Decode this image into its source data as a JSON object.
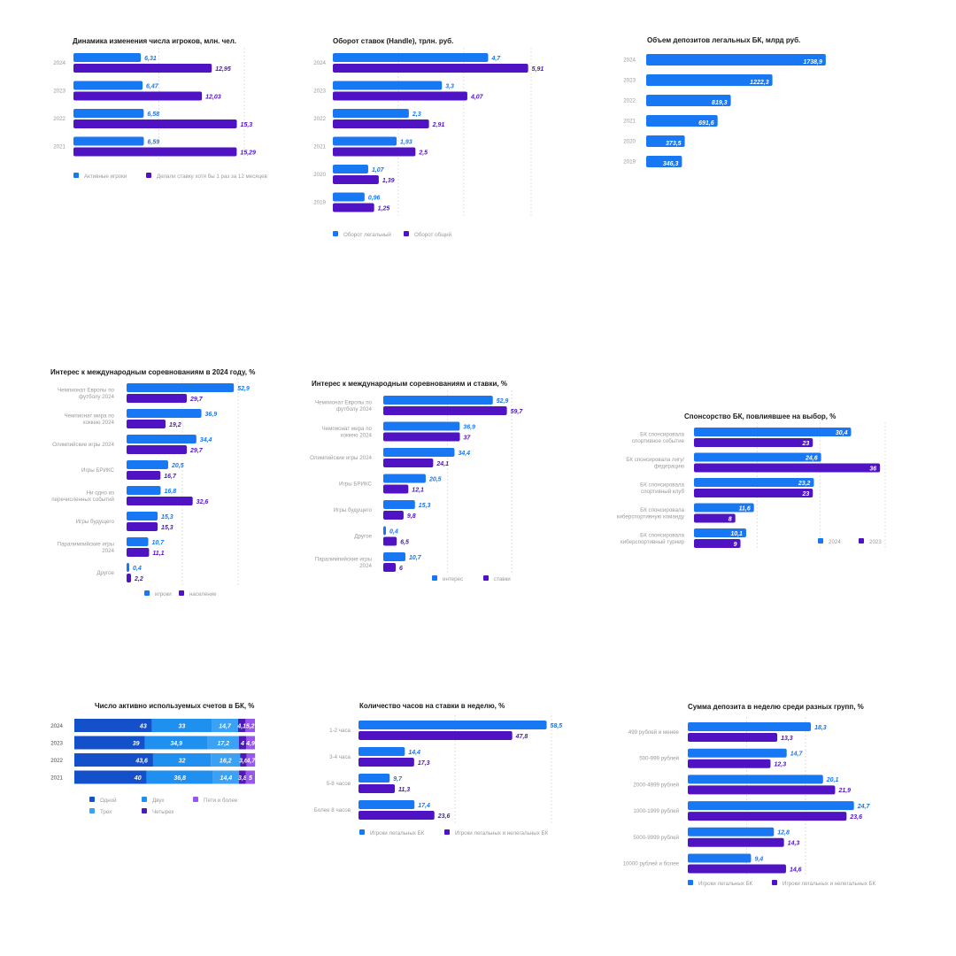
{
  "colors": {
    "blue": "#1877f2",
    "purple": "#4f13c4",
    "dark_blue": "#1350c9",
    "mid_blue": "#1f8ff0",
    "light_blue": "#3aa1f5",
    "dark_purple": "#4a1bb5",
    "violet": "#9956ee",
    "label_text": "#9a9a9a",
    "grid": "#d6d6d6"
  },
  "chart_data": [
    {
      "id": "players",
      "type": "bar",
      "title": "Динамика изменения числа игроков, млн. чел.",
      "categories": [
        "2024",
        "2023",
        "2022",
        "2021"
      ],
      "series": [
        {
          "name": "Активные игроки",
          "color": "#1877f2",
          "values": [
            6.31,
            6.47,
            6.58,
            6.59
          ],
          "labels": [
            "6,31",
            "6,47",
            "6,58",
            "6,59"
          ]
        },
        {
          "name": "Делали ставку хотя бы 1 раз за 12 месяцев",
          "color": "#4f13c4",
          "values": [
            12.95,
            12.03,
            15.3,
            15.29
          ],
          "labels": [
            "12,95",
            "12,03",
            "15,3",
            "15,29"
          ]
        }
      ],
      "xlim": [
        0,
        16
      ]
    },
    {
      "id": "handle",
      "type": "bar",
      "title": "Оборот ставок (Handle), трлн. руб.",
      "categories": [
        "2024",
        "2023",
        "2022",
        "2021",
        "2020",
        "2019"
      ],
      "series": [
        {
          "name": "Оборот легальный",
          "color": "#1877f2",
          "values": [
            4.7,
            3.3,
            2.3,
            1.93,
            1.07,
            0.96
          ],
          "labels": [
            "4,7",
            "3,3",
            "2,3",
            "1,93",
            "1,07",
            "0,96"
          ]
        },
        {
          "name": "Оборот общий",
          "color": "#4f13c4",
          "values": [
            5.91,
            4.07,
            2.91,
            2.5,
            1.39,
            1.25
          ],
          "labels": [
            "5,91",
            "4,07",
            "2,91",
            "2,5",
            "1,39",
            "1,25"
          ]
        }
      ],
      "xlim": [
        0,
        6
      ]
    },
    {
      "id": "deposits",
      "type": "bar",
      "title": "Объем депозитов легальных БК, млрд руб.",
      "categories": [
        "2024",
        "2023",
        "2022",
        "2021",
        "2020",
        "2019"
      ],
      "series": [
        {
          "name": "",
          "color": "#1877f2",
          "values": [
            1738.9,
            1222.3,
            819.3,
            691.6,
            373.5,
            346.3
          ],
          "labels": [
            "1738,9",
            "1222,3",
            "819,3",
            "691,6",
            "373,5",
            "346,3"
          ]
        }
      ],
      "xlim": [
        0,
        1800
      ]
    },
    {
      "id": "interest2024",
      "type": "bar",
      "title": "Интерес к международным соревнованиям в 2024 году, %",
      "categories": [
        "Чемпионат Европы по футболу 2024",
        "Чемпионат мира по хоккею 2024",
        "Олимпийские игры 2024",
        "Игры БРИКС",
        "Ни одно из перечисленных событий",
        "Игры будущего",
        "Паралимпийские игры 2024",
        "Другое"
      ],
      "series": [
        {
          "name": "игроки",
          "color": "#1877f2",
          "values": [
            52.9,
            36.9,
            34.4,
            20.5,
            16.8,
            15.3,
            10.7,
            0.4
          ],
          "labels": [
            "52,9",
            "36,9",
            "34,4",
            "20,5",
            "16,8",
            "15,3",
            "10,7",
            "0,4"
          ]
        },
        {
          "name": "население",
          "color": "#4f13c4",
          "values": [
            29.7,
            19.2,
            29.7,
            16.7,
            32.6,
            15.3,
            11.1,
            2.2
          ],
          "labels": [
            "29,7",
            "19,2",
            "29,7",
            "16,7",
            "32,6",
            "15,3",
            "11,1",
            "2,2"
          ]
        }
      ],
      "xlim": [
        0,
        55
      ]
    },
    {
      "id": "interest_bets",
      "type": "bar",
      "title": "Интерес к международным соревнованиям и ставки, %",
      "categories": [
        "Чемпионат Европы по футболу 2024",
        "Чемпионат мира по хоккею 2024",
        "Олимпийские игры 2024",
        "Игры БРИКС",
        "Игры будущего",
        "Другое",
        "Паралимпийские игры 2024"
      ],
      "series": [
        {
          "name": "интерес",
          "color": "#1877f2",
          "values": [
            52.9,
            36.9,
            34.4,
            20.5,
            15.3,
            0.4,
            10.7
          ],
          "labels": [
            "52,9",
            "36,9",
            "34,4",
            "20,5",
            "15,3",
            "0,4",
            "10,7"
          ]
        },
        {
          "name": "ставки",
          "color": "#4f13c4",
          "values": [
            59.7,
            37,
            24.1,
            12.1,
            9.8,
            6.5,
            6
          ],
          "labels": [
            "59,7",
            "37",
            "24,1",
            "12,1",
            "9,8",
            "6,5",
            "6"
          ]
        }
      ],
      "xlim": [
        0,
        62
      ]
    },
    {
      "id": "sponsorship",
      "type": "bar",
      "title": "Спонсорство БК, повлиявшее на выбор, %",
      "categories": [
        "БК спонсировала спортивное событие",
        "БК спонсировала лигу/ федерацию",
        "БК спонсировала спортивный клуб",
        "БК спонсировала киберспортивную команду",
        "БК спонсировала киберспортивный турнир"
      ],
      "series": [
        {
          "name": "2024",
          "color": "#1877f2",
          "values": [
            30.4,
            24.6,
            23.2,
            11.6,
            10.1
          ],
          "labels": [
            "30,4",
            "24,6",
            "23,2",
            "11,6",
            "10,1"
          ]
        },
        {
          "name": "2023",
          "color": "#4f13c4",
          "values": [
            23,
            36,
            23,
            8,
            9
          ],
          "labels": [
            "23",
            "36",
            "23",
            "8",
            "9"
          ]
        }
      ],
      "xlim": [
        0,
        37
      ]
    },
    {
      "id": "accounts",
      "type": "bar",
      "stacked": true,
      "title": "Число активно используемых счетов в БК, %",
      "categories": [
        "2024",
        "2023",
        "2022",
        "2021"
      ],
      "series": [
        {
          "name": "Одной",
          "color": "#1350c9",
          "values": [
            43,
            39,
            43.6,
            40
          ],
          "labels": [
            "43",
            "39",
            "43,6",
            "40"
          ]
        },
        {
          "name": "Двух",
          "color": "#1f8ff0",
          "values": [
            33,
            34.9,
            32,
            36.8
          ],
          "labels": [
            "33",
            "34,9",
            "32",
            "36,8"
          ]
        },
        {
          "name": "Трех",
          "color": "#3aa1f5",
          "values": [
            14.7,
            17.2,
            16.2,
            14.4
          ],
          "labels": [
            "14,7",
            "17,2",
            "16,2",
            "14,4"
          ]
        },
        {
          "name": "Четырех",
          "color": "#4a1bb5",
          "values": [
            4.1,
            4,
            3.6,
            3.8
          ],
          "labels": [
            "4,1",
            "4",
            "3,6",
            "3,8"
          ]
        },
        {
          "name": "Пяти и более",
          "color": "#9956ee",
          "values": [
            5.2,
            4.9,
            4.7,
            5
          ],
          "labels": [
            "5,2",
            "4,9",
            "4,7",
            "5"
          ]
        }
      ],
      "xlim": [
        0,
        100
      ]
    },
    {
      "id": "hours",
      "type": "bar",
      "title": "Количество часов на ставки в неделю, %",
      "categories": [
        "1-2 часа",
        "3-4 часа",
        "5-8 часов",
        "Более 8 часов"
      ],
      "series": [
        {
          "name": "Игроки легальных БК",
          "color": "#1877f2",
          "values": [
            58.5,
            14.4,
            9.7,
            17.4
          ],
          "labels": [
            "58,5",
            "14,4",
            "9,7",
            "17,4"
          ]
        },
        {
          "name": "Игроки легальных и нелегальных БК",
          "color": "#4f13c4",
          "values": [
            47.8,
            17.3,
            11.3,
            23.6
          ],
          "labels": [
            "47,8",
            "17,3",
            "11,3",
            "23,6"
          ]
        }
      ],
      "xlim": [
        0,
        60
      ]
    },
    {
      "id": "deposit_sum",
      "type": "bar",
      "title": "Сумма депозита в неделю среди разных групп, %",
      "categories": [
        "499 рублей и менее",
        "500-999 рублей",
        "2000-4999 рублей",
        "1000-1999 рублей",
        "5000-9999 рублей",
        "10000 рублей и более"
      ],
      "series": [
        {
          "name": "Игроки легальных БК",
          "color": "#1877f2",
          "values": [
            18.3,
            14.7,
            20.1,
            24.7,
            12.8,
            9.4
          ],
          "labels": [
            "18,3",
            "14,7",
            "20,1",
            "24,7",
            "12,8",
            "9,4"
          ]
        },
        {
          "name": "Игроки легальных и нелегальных БК",
          "color": "#4f13c4",
          "values": [
            13.3,
            12.3,
            21.9,
            23.6,
            14.3,
            14.6
          ],
          "labels": [
            "13,3",
            "12,3",
            "21,9",
            "23,6",
            "14,3",
            "14,6"
          ]
        }
      ],
      "xlim": [
        0,
        25
      ]
    }
  ]
}
